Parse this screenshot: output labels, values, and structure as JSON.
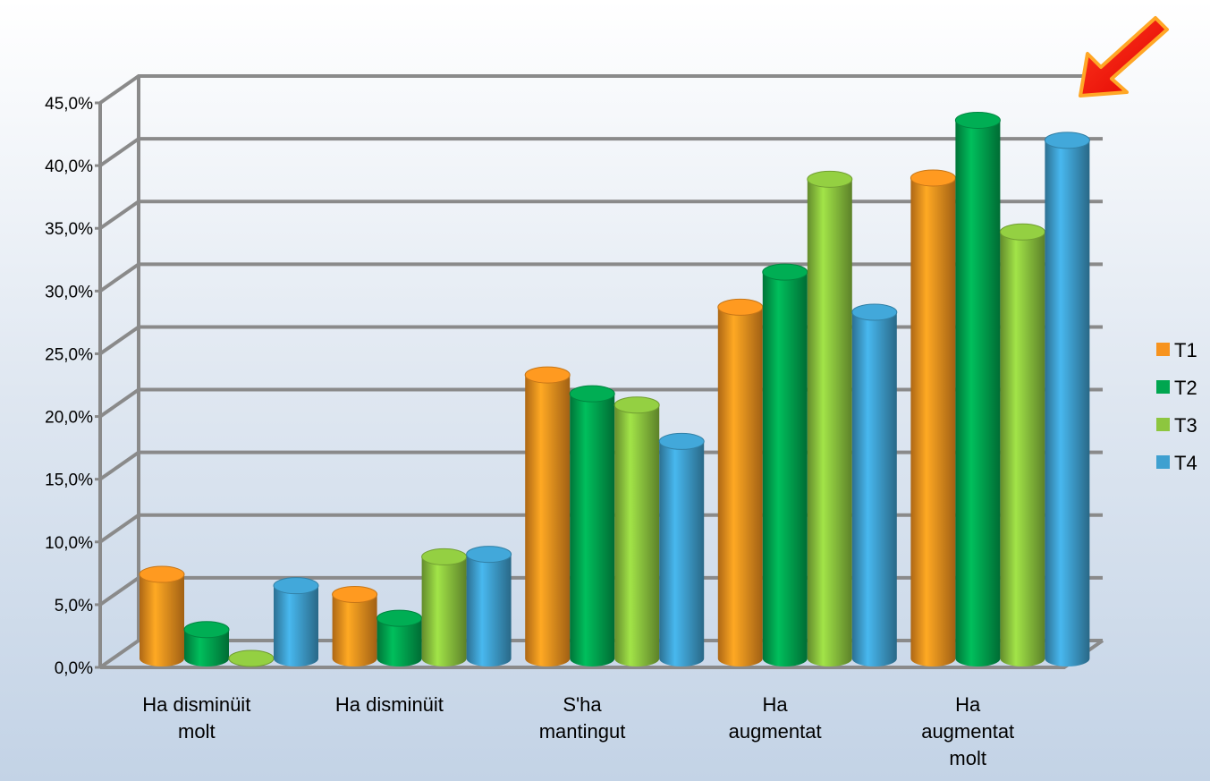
{
  "chart_data": {
    "type": "bar",
    "categories": [
      "Ha disminüit molt",
      "Ha disminüit",
      "S'ha mantingut",
      "Ha augmentat",
      "Ha augmentat molt"
    ],
    "series": [
      {
        "name": "T1",
        "color": "#f7931e",
        "values": [
          6.7,
          5.1,
          22.6,
          28.0,
          38.3
        ]
      },
      {
        "name": "T2",
        "color": "#00a650",
        "values": [
          2.3,
          3.2,
          21.1,
          30.8,
          42.9
        ]
      },
      {
        "name": "T3",
        "color": "#8dc63f",
        "values": [
          0.0,
          8.1,
          20.2,
          38.2,
          34.0
        ]
      },
      {
        "name": "T4",
        "color": "#3fa0d0",
        "values": [
          5.8,
          8.3,
          17.3,
          27.6,
          41.3
        ]
      }
    ],
    "ylim": [
      0,
      45
    ],
    "yticks": [
      "0,0%",
      "5,0%",
      "10,0%",
      "15,0%",
      "20,0%",
      "25,0%",
      "30,0%",
      "35,0%",
      "40,0%",
      "45,0%"
    ],
    "grid": true,
    "legend_position": "right",
    "annotation": "red arrow pointing to top-right corner"
  }
}
